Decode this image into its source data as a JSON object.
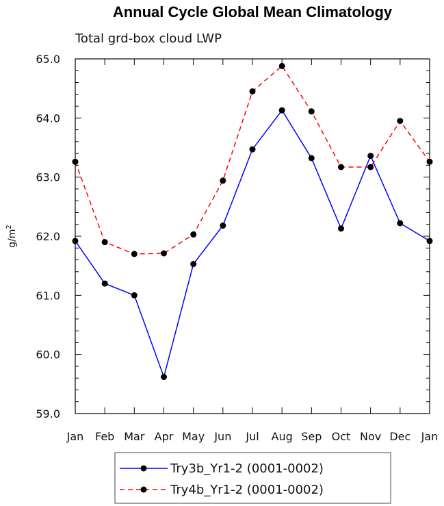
{
  "chart_data": {
    "type": "line",
    "title": "Annual Cycle Global Mean Climatology",
    "subtitle": "Total grd-box cloud LWP",
    "xlabel": "",
    "ylabel": "g/m",
    "ylabel_sup": "2",
    "categories": [
      "Jan",
      "Feb",
      "Mar",
      "Apr",
      "May",
      "Jun",
      "Jul",
      "Aug",
      "Sep",
      "Oct",
      "Nov",
      "Dec",
      "Jan"
    ],
    "ylim": [
      59.0,
      65.0
    ],
    "yticks": [
      "59.0",
      "60.0",
      "61.0",
      "62.0",
      "63.0",
      "64.0",
      "65.0"
    ],
    "grid": false,
    "legend": "bottom",
    "series": [
      {
        "name": "Try3b_Yr1-2 (0001-0002)",
        "color": "#0000ff",
        "dash": "solid",
        "marker": "filled-circle",
        "values": [
          61.92,
          61.2,
          61.0,
          59.62,
          61.53,
          62.18,
          63.47,
          64.13,
          63.32,
          62.13,
          63.36,
          62.22,
          61.92
        ]
      },
      {
        "name": "Try4b_Yr1-2 (0001-0002)",
        "color": "#ff0000",
        "dash": "dashed",
        "marker": "filled-circle",
        "values": [
          63.26,
          61.9,
          61.7,
          61.71,
          62.03,
          62.94,
          64.45,
          64.88,
          64.11,
          63.17,
          63.17,
          63.95,
          63.26
        ]
      }
    ]
  }
}
